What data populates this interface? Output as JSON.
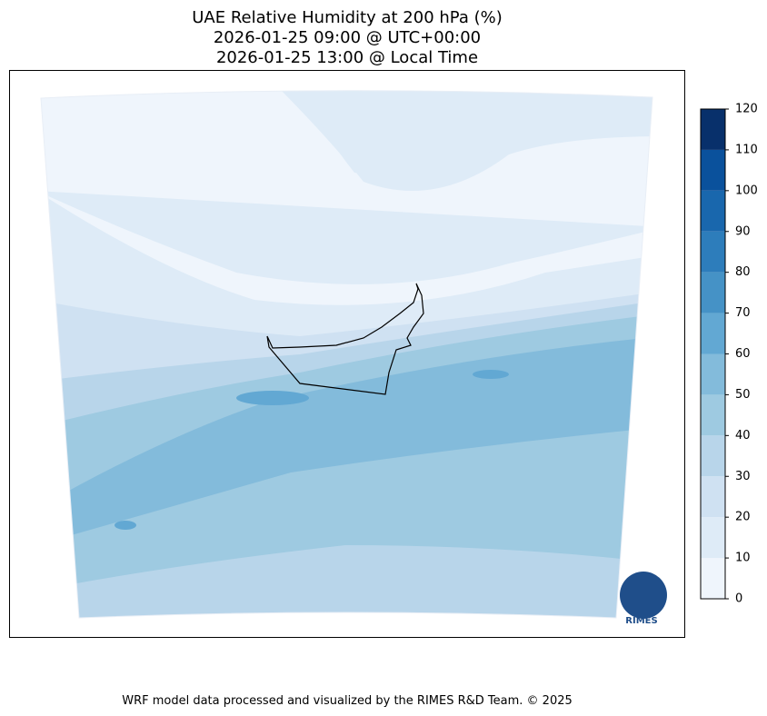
{
  "map": {
    "title": [
      "UAE Relative Humidity at 200 hPa (%)",
      "2026-01-25 09:00 @ UTC+00:00",
      "2026-01-25 13:00 @ Local Time"
    ],
    "colorbar": {
      "ticks": [
        0,
        10,
        20,
        30,
        40,
        50,
        60,
        70,
        80,
        90,
        100,
        110,
        120
      ],
      "colors": [
        "#eff5fc",
        "#deebf7",
        "#cfe1f2",
        "#b8d5ea",
        "#9ecae1",
        "#83bbdb",
        "#62a8d3",
        "#4592c6",
        "#2d7dbb",
        "#1967ad",
        "#0a519c",
        "#08306b"
      ]
    },
    "logo": "RIMES",
    "footer": "WRF model data processed and visualized by the RIMES R&D Team. © 2025"
  }
}
